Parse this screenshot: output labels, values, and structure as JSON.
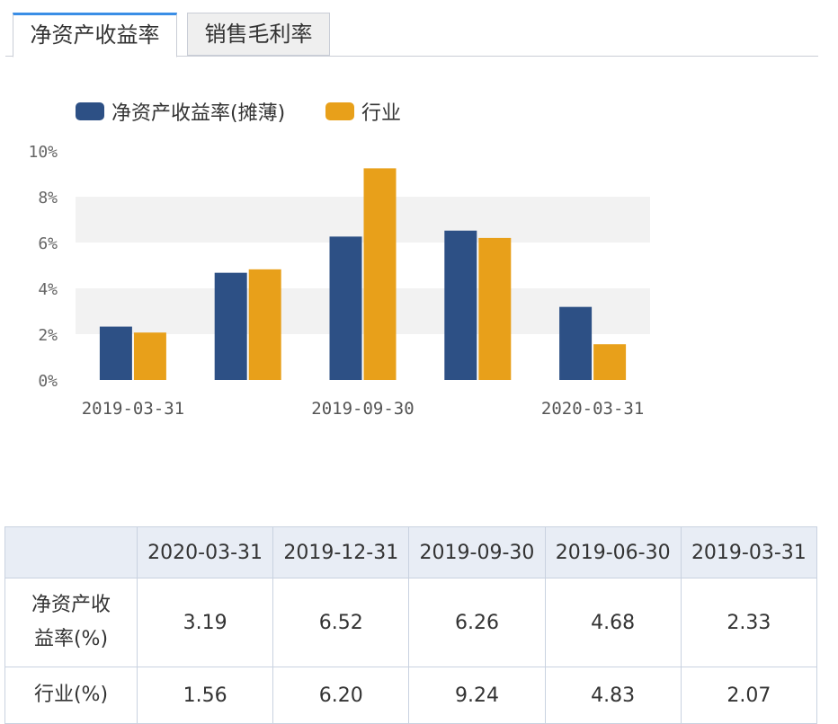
{
  "tabs": [
    {
      "label": "净资产收益率"
    },
    {
      "label": "销售毛利率"
    }
  ],
  "colors": {
    "primary": "#2d5085",
    "industry": "#e8a01a",
    "accent": "#3a8ee6"
  },
  "chart_data": {
    "type": "bar",
    "categories": [
      "2019-03-31",
      "2019-06-30",
      "2019-09-30",
      "2019-12-31",
      "2020-03-31"
    ],
    "tick_labels": [
      "2019-03-31",
      "2019-09-30",
      "2020-03-31"
    ],
    "series": [
      {
        "name": "净资产收益率(摊薄)",
        "color": "#2d5085",
        "values": [
          2.33,
          4.68,
          6.26,
          6.52,
          3.19
        ]
      },
      {
        "name": "行业",
        "color": "#e8a01a",
        "values": [
          2.07,
          4.83,
          9.24,
          6.2,
          1.56
        ]
      }
    ],
    "ylim": [
      0,
      10
    ],
    "yticks": [
      "0%",
      "2%",
      "4%",
      "6%",
      "8%",
      "10%"
    ],
    "legend": "top-left",
    "grid": "alternating horizontal bands"
  },
  "table": {
    "headers": [
      "",
      "2020-03-31",
      "2019-12-31",
      "2019-09-30",
      "2019-06-30",
      "2019-03-31"
    ],
    "rows": [
      {
        "label_line1": "净资产收",
        "label_line2": "益率(%)",
        "values": [
          "3.19",
          "6.52",
          "6.26",
          "4.68",
          "2.33"
        ]
      },
      {
        "label_line1": "行业(%)",
        "label_line2": "",
        "values": [
          "1.56",
          "6.20",
          "9.24",
          "4.83",
          "2.07"
        ]
      }
    ]
  }
}
